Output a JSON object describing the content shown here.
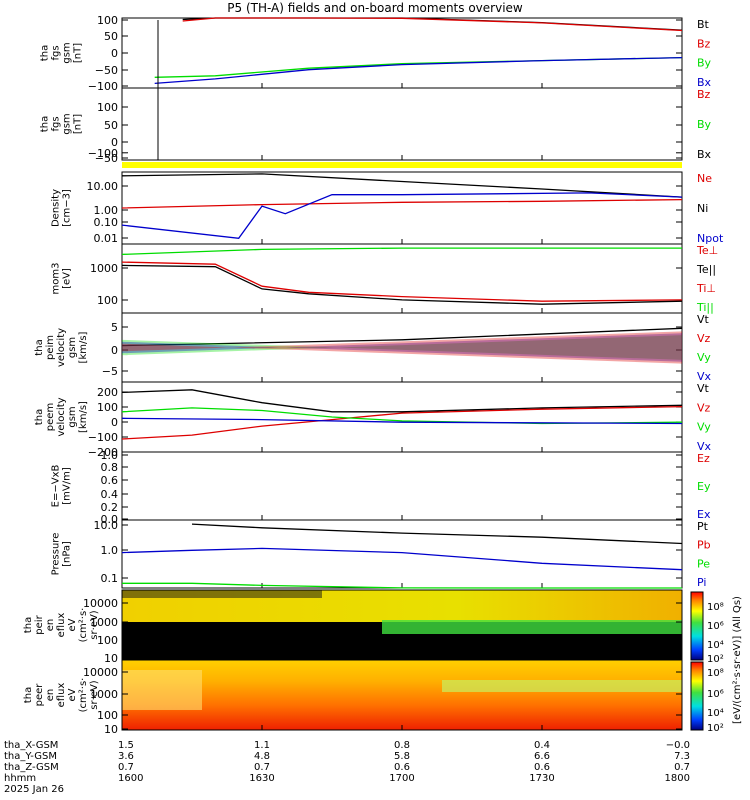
{
  "title": "P5 (TH-A) fields and on-board moments overview",
  "colors": {
    "black": "#000000",
    "red": "#dd0000",
    "green": "#00dd00",
    "blue": "#0000cc",
    "yellow": "#ffff00"
  },
  "panels": [
    {
      "ylabel_lines": [
        "tha",
        "fgs",
        "gsm",
        "[nT]"
      ],
      "ticks": [
        "100",
        "50",
        "0",
        "−50",
        "−100"
      ],
      "legend": [
        {
          "text": "Bt",
          "color": "#000000"
        },
        {
          "text": "Bz",
          "color": "#dd0000"
        },
        {
          "text": "By",
          "color": "#00dd00"
        },
        {
          "text": "Bx",
          "color": "#0000cc"
        }
      ]
    },
    {
      "ylabel_lines": [
        "tha",
        "fgs",
        "gsm",
        "[nT]"
      ],
      "ticks": [
        "100",
        "50",
        "0",
        "−50",
        "−100"
      ],
      "legend": [
        {
          "text": "Bz",
          "color": "#dd0000"
        },
        {
          "text": "By",
          "color": "#00dd00"
        },
        {
          "text": "Bx",
          "color": "#000000"
        }
      ]
    },
    {
      "ylabel_lines": [
        "Density",
        "[cm−3]"
      ],
      "ticks": [
        "10.00",
        "1.00",
        "0.10",
        "0.01"
      ],
      "legend": [
        {
          "text": "Ne",
          "color": "#dd0000"
        },
        {
          "text": "Ni",
          "color": "#000000"
        },
        {
          "text": "Npot",
          "color": "#0000cc"
        }
      ]
    },
    {
      "ylabel_lines": [
        "mom3",
        "[eV]"
      ],
      "ticks": [
        "1000",
        "100"
      ],
      "legend": [
        {
          "text": "Te⊥",
          "color": "#dd0000"
        },
        {
          "text": "Te||",
          "color": "#000000"
        },
        {
          "text": "Ti⊥",
          "color": "#dd0000"
        },
        {
          "text": "Ti||",
          "color": "#00dd00"
        }
      ]
    },
    {
      "ylabel_lines": [
        "tha",
        "peim",
        "velocity",
        "gsm",
        "[km/s]"
      ],
      "ticks": [
        "5",
        "0",
        "−5"
      ],
      "legend": [
        {
          "text": "Vt",
          "color": "#000000"
        },
        {
          "text": "Vz",
          "color": "#dd0000"
        },
        {
          "text": "Vy",
          "color": "#00dd00"
        },
        {
          "text": "Vx",
          "color": "#0000cc"
        }
      ]
    },
    {
      "ylabel_lines": [
        "tha",
        "peem",
        "velocity",
        "gsm",
        "[km/s]"
      ],
      "ticks": [
        "200",
        "100",
        "0",
        "−100",
        "−200"
      ],
      "legend": [
        {
          "text": "Vt",
          "color": "#000000"
        },
        {
          "text": "Vz",
          "color": "#dd0000"
        },
        {
          "text": "Vy",
          "color": "#00dd00"
        },
        {
          "text": "Vx",
          "color": "#0000cc"
        }
      ]
    },
    {
      "ylabel_lines": [
        "E=−VxB",
        "[mV/m]"
      ],
      "ticks": [
        "1.0",
        "0.8",
        "0.6",
        "0.4",
        "0.2",
        "0.0"
      ],
      "legend": [
        {
          "text": "Ez",
          "color": "#dd0000"
        },
        {
          "text": "Ey",
          "color": "#00dd00"
        },
        {
          "text": "Ex",
          "color": "#0000cc"
        }
      ]
    },
    {
      "ylabel_lines": [
        "Pressure",
        "[nPa]"
      ],
      "ticks": [
        "10.0",
        "1.0",
        "0.1"
      ],
      "legend": [
        {
          "text": "Pt",
          "color": "#000000"
        },
        {
          "text": "Pb",
          "color": "#dd0000"
        },
        {
          "text": "Pe",
          "color": "#00dd00"
        },
        {
          "text": "Pi",
          "color": "#0000cc"
        }
      ]
    },
    {
      "ylabel_lines": [
        "tha",
        "peir",
        "en",
        "eflux",
        "eV",
        "(cm²·s·",
        "sr·eV)"
      ],
      "ticks": [
        "10000",
        "1000",
        "100",
        "10"
      ],
      "legend": []
    },
    {
      "ylabel_lines": [
        "tha",
        "peer",
        "en",
        "eflux",
        "eV",
        "(cm²·s·",
        "sr·eV)"
      ],
      "ticks": [
        "10000",
        "1000",
        "100",
        "10"
      ],
      "legend": []
    }
  ],
  "colorbar": {
    "label": "[eV/(cm²·s·sr·eV)] (All Qs)",
    "ticks": [
      "10⁸",
      "10⁶",
      "10⁴",
      "10²",
      "10⁸",
      "10⁶",
      "10⁴",
      "10²"
    ]
  },
  "x_axis": {
    "row_labels": [
      "tha_X-GSM",
      "tha_Y-GSM",
      "tha_Z-GSM",
      "hhmm",
      "2025 Jan 26"
    ],
    "columns": [
      {
        "X": "1.5",
        "Y": "3.6",
        "Z": "0.7",
        "hhmm": "1600"
      },
      {
        "X": "1.1",
        "Y": "4.8",
        "Z": "0.7",
        "hhmm": "1630"
      },
      {
        "X": "0.8",
        "Y": "5.8",
        "Z": "0.6",
        "hhmm": "1700"
      },
      {
        "X": "0.4",
        "Y": "6.6",
        "Z": "0.6",
        "hhmm": "1730"
      },
      {
        "X": "−0.0",
        "Y": "7.3",
        "Z": "0.7",
        "hhmm": "1800"
      }
    ]
  },
  "chart_data": {
    "type": "line",
    "title": "P5 (TH-A) fields and on-board moments overview",
    "x_minutes_since_1600": [
      0,
      30,
      60,
      90,
      120
    ],
    "x_tick_labels": [
      "1600",
      "1630",
      "1700",
      "1730",
      "1800"
    ],
    "series": [
      {
        "panel": 0,
        "name": "Bt",
        "x": [
          13,
          20,
          40,
          60,
          90,
          120
        ],
        "y": [
          110,
          130,
          125,
          115,
          100,
          75
        ]
      },
      {
        "panel": 0,
        "name": "Bz",
        "x": [
          13,
          20,
          40,
          60,
          90,
          120
        ],
        "y": [
          105,
          128,
          124,
          114,
          99,
          74
        ]
      },
      {
        "panel": 0,
        "name": "By",
        "x": [
          7,
          20,
          40,
          60,
          90,
          120
        ],
        "y": [
          -80,
          -75,
          -50,
          -35,
          -25,
          -15
        ]
      },
      {
        "panel": 0,
        "name": "Bx",
        "x": [
          7,
          20,
          40,
          60,
          90,
          120
        ],
        "y": [
          -100,
          -85,
          -55,
          -38,
          -25,
          -15
        ]
      },
      {
        "panel": 2,
        "name": "Ni",
        "x": [
          0,
          30,
          60,
          90,
          120
        ],
        "y": [
          20,
          25,
          10,
          4,
          1.5
        ]
      },
      {
        "panel": 2,
        "name": "Ne",
        "x": [
          0,
          30,
          60,
          90,
          120
        ],
        "y": [
          0.4,
          0.6,
          0.8,
          0.9,
          1.1
        ]
      },
      {
        "panel": 2,
        "name": "Npot",
        "x": [
          0,
          25,
          30,
          35,
          45,
          60,
          100,
          120
        ],
        "y": [
          0.05,
          0.01,
          0.5,
          0.2,
          2,
          2,
          2.5,
          1.5
        ]
      },
      {
        "panel": 3,
        "name": "Ti||",
        "x": [
          0,
          30,
          60,
          90,
          120
        ],
        "y": [
          2500,
          3500,
          3800,
          3800,
          3800
        ]
      },
      {
        "panel": 3,
        "name": "Te⊥",
        "x": [
          0,
          20,
          30,
          40,
          60,
          90,
          120
        ],
        "y": [
          1500,
          1300,
          300,
          200,
          150,
          110,
          120
        ]
      },
      {
        "panel": 3,
        "name": "Te||",
        "x": [
          0,
          20,
          30,
          40,
          60,
          90,
          120
        ],
        "y": [
          1200,
          1100,
          250,
          180,
          120,
          90,
          110
        ]
      },
      {
        "panel": 4,
        "name": "Vt",
        "x": [
          0,
          60,
          120
        ],
        "y": [
          0.5,
          2,
          5
        ]
      },
      {
        "panel": 5,
        "name": "Vt",
        "x": [
          0,
          15,
          30,
          45,
          60,
          90,
          120
        ],
        "y": [
          200,
          220,
          120,
          50,
          50,
          80,
          100
        ]
      },
      {
        "panel": 5,
        "name": "Vz",
        "x": [
          0,
          15,
          30,
          45,
          60,
          90,
          120
        ],
        "y": [
          -160,
          -130,
          -60,
          -10,
          40,
          70,
          90
        ]
      },
      {
        "panel": 5,
        "name": "Vy",
        "x": [
          0,
          15,
          30,
          45,
          60,
          90,
          120
        ],
        "y": [
          50,
          80,
          60,
          10,
          -20,
          -40,
          -30
        ]
      },
      {
        "panel": 5,
        "name": "Vx",
        "x": [
          0,
          30,
          60,
          120
        ],
        "y": [
          0,
          -10,
          -30,
          -40
        ]
      },
      {
        "panel": 7,
        "name": "Pt",
        "x": [
          15,
          30,
          60,
          90,
          120
        ],
        "y": [
          11,
          8,
          5,
          3.5,
          2
        ]
      },
      {
        "panel": 7,
        "name": "Pi",
        "x": [
          0,
          15,
          30,
          60,
          90,
          120
        ],
        "y": [
          0.9,
          1.1,
          1.3,
          0.9,
          0.35,
          0.2
        ]
      },
      {
        "panel": 7,
        "name": "Pe",
        "x": [
          0,
          15,
          30,
          60,
          90,
          120
        ],
        "y": [
          0.06,
          0.06,
          0.05,
          0.04,
          0.03,
          0.03
        ]
      }
    ]
  }
}
